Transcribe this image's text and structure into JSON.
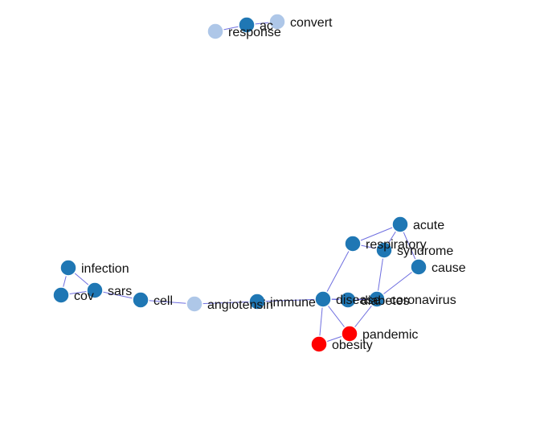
{
  "colors": {
    "dark": "#1f77b4",
    "light": "#aec7e8",
    "red": "#ff0000",
    "edge": "#6f6fe0"
  },
  "nodes": [
    {
      "id": "ac",
      "label": "ac",
      "group": "dark"
    },
    {
      "id": "convert",
      "label": "convert",
      "group": "light"
    },
    {
      "id": "response",
      "label": "response",
      "group": "light"
    },
    {
      "id": "infection",
      "label": "infection",
      "group": "dark"
    },
    {
      "id": "cov",
      "label": "cov",
      "group": "dark"
    },
    {
      "id": "sars",
      "label": "sars",
      "group": "dark"
    },
    {
      "id": "cell",
      "label": "cell",
      "group": "dark"
    },
    {
      "id": "angiotensin",
      "label": "angiotensin",
      "group": "light"
    },
    {
      "id": "immune",
      "label": "immune",
      "group": "dark"
    },
    {
      "id": "disease",
      "label": "disease",
      "group": "dark"
    },
    {
      "id": "diabetes",
      "label": "diabetes",
      "group": "dark"
    },
    {
      "id": "coronavirus",
      "label": "coronavirus",
      "group": "dark"
    },
    {
      "id": "acute",
      "label": "acute",
      "group": "dark"
    },
    {
      "id": "respiratory",
      "label": "respiratory",
      "group": "dark"
    },
    {
      "id": "syndrome",
      "label": "syndrome",
      "group": "dark"
    },
    {
      "id": "cause",
      "label": "cause",
      "group": "dark"
    },
    {
      "id": "pandemic",
      "label": "pandemic",
      "group": "red"
    },
    {
      "id": "obesity",
      "label": "obesity",
      "group": "red"
    }
  ],
  "edges": [
    [
      "response",
      "ac"
    ],
    [
      "ac",
      "convert"
    ],
    [
      "infection",
      "cov"
    ],
    [
      "infection",
      "sars"
    ],
    [
      "cov",
      "sars"
    ],
    [
      "sars",
      "cell"
    ],
    [
      "cell",
      "angiotensin"
    ],
    [
      "angiotensin",
      "immune"
    ],
    [
      "immune",
      "disease"
    ],
    [
      "disease",
      "respiratory"
    ],
    [
      "disease",
      "diabetes"
    ],
    [
      "disease",
      "obesity"
    ],
    [
      "disease",
      "pandemic"
    ],
    [
      "diabetes",
      "coronavirus"
    ],
    [
      "coronavirus",
      "syndrome"
    ],
    [
      "coronavirus",
      "cause"
    ],
    [
      "coronavirus",
      "pandemic"
    ],
    [
      "coronavirus",
      "disease"
    ],
    [
      "respiratory",
      "acute"
    ],
    [
      "respiratory",
      "syndrome"
    ],
    [
      "acute",
      "syndrome"
    ],
    [
      "acute",
      "cause"
    ],
    [
      "obesity",
      "pandemic"
    ]
  ]
}
